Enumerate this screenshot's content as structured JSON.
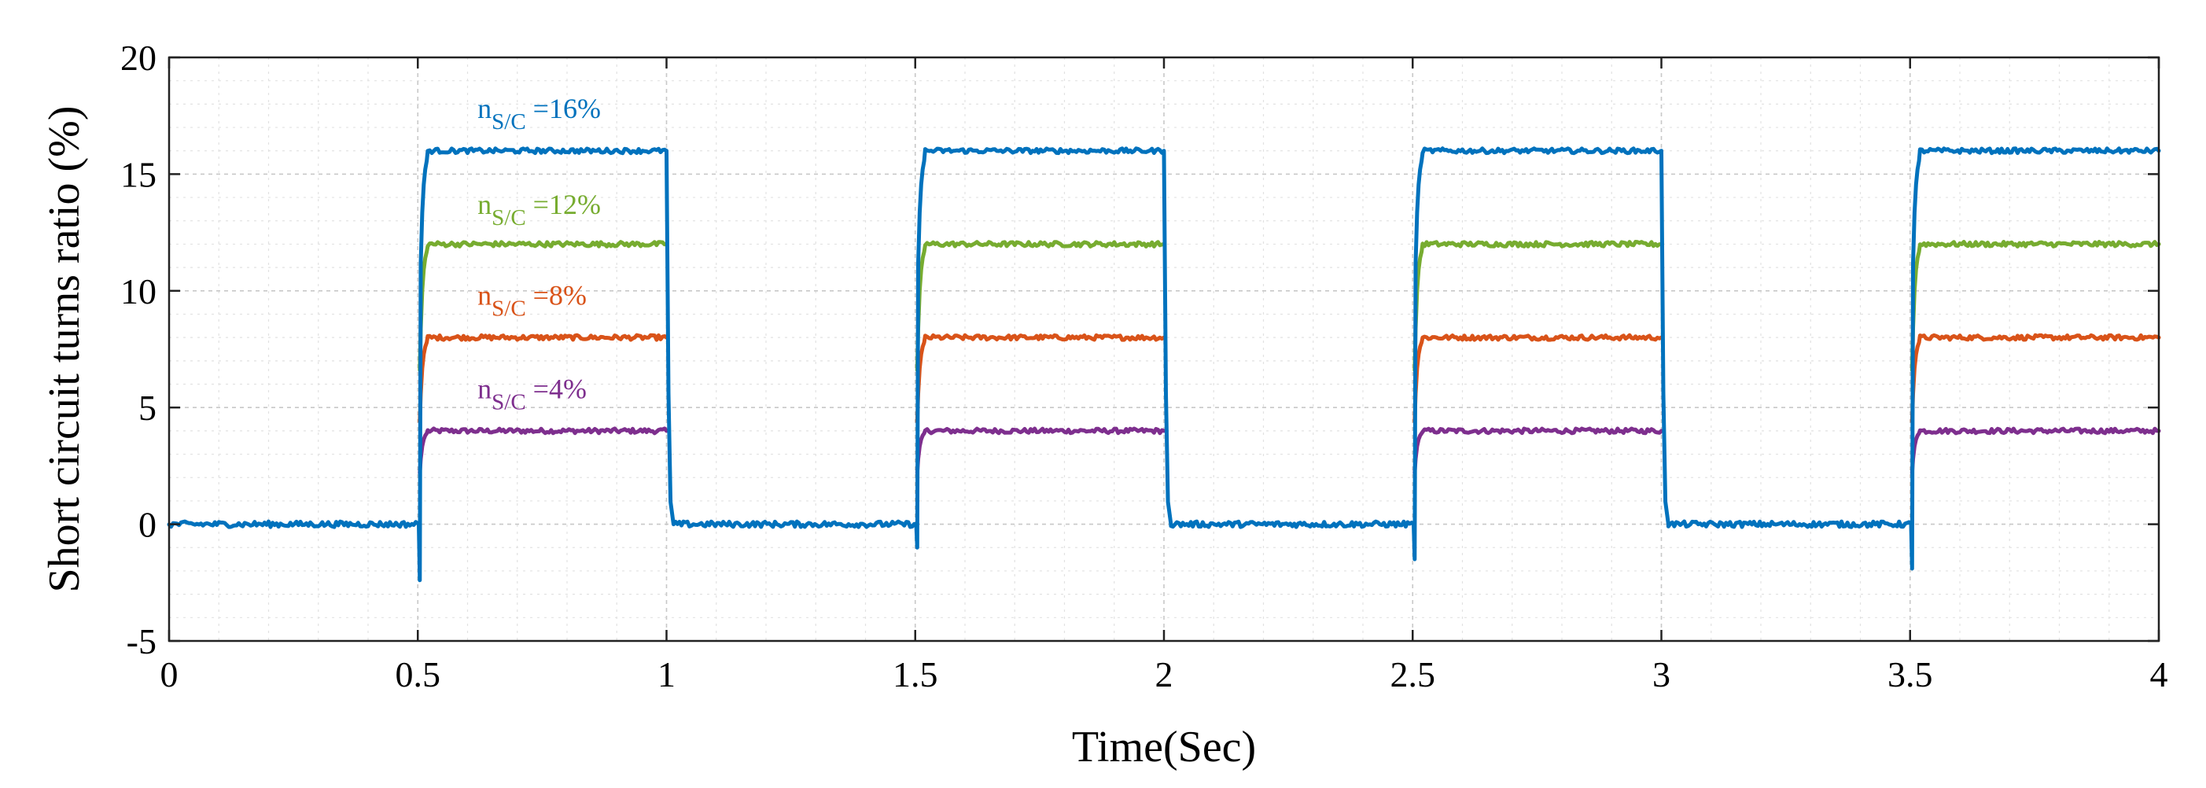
{
  "chart_data": {
    "type": "line",
    "xlabel": "Time(Sec)",
    "ylabel": "Short circuit turns ratio (%)",
    "xlim": [
      0,
      4
    ],
    "ylim": [
      -5,
      20
    ],
    "xticks": [
      0,
      0.5,
      1,
      1.5,
      2,
      2.5,
      3,
      3.5,
      4
    ],
    "xtick_labels": [
      "0",
      "0.5",
      "1",
      "1.5",
      "2",
      "2.5",
      "3",
      "3.5",
      "4"
    ],
    "yticks": [
      -5,
      0,
      5,
      10,
      15,
      20
    ],
    "ytick_labels": [
      "-5",
      "0",
      "5",
      "10",
      "15",
      "20"
    ],
    "grid": true,
    "minor_grid": true,
    "on_intervals": [
      [
        0.5,
        1.0
      ],
      [
        1.5,
        2.0
      ],
      [
        2.5,
        3.0
      ],
      [
        3.5,
        4.0
      ]
    ],
    "series": [
      {
        "level": 16,
        "color": "#0072BD",
        "annotation": {
          "main": "n",
          "sub": "S/C",
          "tail": " =16%",
          "x": 0.62,
          "y": 17.4
        }
      },
      {
        "level": 12,
        "color": "#77AC30",
        "annotation": {
          "main": "n",
          "sub": "S/C",
          "tail": " =12%",
          "x": 0.62,
          "y": 13.3
        }
      },
      {
        "level": 8,
        "color": "#D95319",
        "annotation": {
          "main": "n",
          "sub": "S/C",
          "tail": " =8%",
          "x": 0.62,
          "y": 9.4
        }
      },
      {
        "level": 4,
        "color": "#7E2F8E",
        "annotation": {
          "main": "n",
          "sub": "S/C",
          "tail": " =4%",
          "x": 0.62,
          "y": 5.4
        }
      }
    ]
  }
}
